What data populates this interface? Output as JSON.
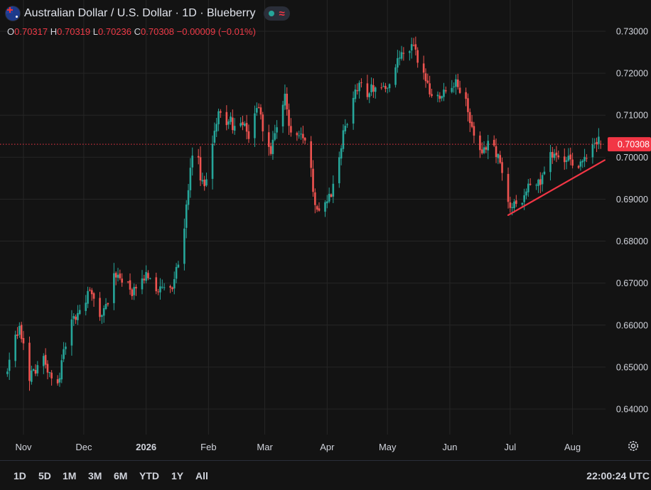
{
  "header": {
    "title": "Australian Dollar / U.S. Dollar · 1D · Blueberry",
    "ohlc": {
      "open_label": "O",
      "open": "0.70317",
      "high_label": "H",
      "high": "0.70319",
      "low_label": "L",
      "low": "0.70236",
      "close_label": "C",
      "close": "0.70308",
      "change": "−0.00009 (−0.01%)"
    },
    "icons": {
      "flag": "aud-usd-flag-icon",
      "status": "market-open-dot-icon",
      "wave": "wave-icon"
    }
  },
  "toolbar": {
    "ranges": [
      "1D",
      "5D",
      "1M",
      "3M",
      "6M",
      "YTD",
      "1Y",
      "All"
    ],
    "time": "22:00:24 UTC",
    "settings_icon": "gear-icon"
  },
  "colors": {
    "background": "#131313",
    "grid": "#262626",
    "up": "#26a69a",
    "down": "#ef5350",
    "trendline": "#f23645",
    "price_label": "#f23645",
    "text": "#d1d4dc"
  },
  "chart_data": {
    "type": "candlestick",
    "symbol": "AUD/USD",
    "interval": "1D",
    "ylim": [
      0.6345,
      0.7305
    ],
    "yticks": [
      "0.73000",
      "0.72000",
      "0.71000",
      "0.70000",
      "0.69000",
      "0.68000",
      "0.67000",
      "0.66000",
      "0.65000",
      "0.64000"
    ],
    "current_price": "0.70308",
    "xticks": [
      {
        "label": "Nov",
        "day": 0,
        "bold": false
      },
      {
        "label": "Dec",
        "day": 30,
        "bold": false
      },
      {
        "label": "2026",
        "day": 61,
        "bold": true
      },
      {
        "label": "Feb",
        "day": 92,
        "bold": false
      },
      {
        "label": "Mar",
        "day": 120,
        "bold": false
      },
      {
        "label": "Apr",
        "day": 151,
        "bold": false
      },
      {
        "label": "May",
        "day": 181,
        "bold": false
      },
      {
        "label": "Jun",
        "day": 212,
        "bold": false
      },
      {
        "label": "Jul",
        "day": 242,
        "bold": false
      },
      {
        "label": "Aug",
        "day": 273,
        "bold": false
      }
    ],
    "grid": true,
    "trendline": {
      "from": {
        "day": 241,
        "price": 0.6862
      },
      "to": {
        "day": 289,
        "price": 0.6993
      }
    },
    "close_anchors": [
      [
        -8,
        0.6485
      ],
      [
        -5,
        0.6555
      ],
      [
        -2,
        0.6588
      ],
      [
        1,
        0.6532
      ],
      [
        3,
        0.6478
      ],
      [
        6,
        0.6496
      ],
      [
        9,
        0.6535
      ],
      [
        12,
        0.6492
      ],
      [
        15,
        0.6452
      ],
      [
        17,
        0.6462
      ],
      [
        21,
        0.6555
      ],
      [
        24,
        0.6608
      ],
      [
        27,
        0.6622
      ],
      [
        30,
        0.6655
      ],
      [
        33,
        0.6678
      ],
      [
        36,
        0.6652
      ],
      [
        39,
        0.6618
      ],
      [
        42,
        0.6662
      ],
      [
        45,
        0.6712
      ],
      [
        48,
        0.6718
      ],
      [
        51,
        0.6702
      ],
      [
        54,
        0.6675
      ],
      [
        57,
        0.6685
      ],
      [
        60,
        0.6712
      ],
      [
        62,
        0.6722
      ],
      [
        65,
        0.6695
      ],
      [
        68,
        0.6682
      ],
      [
        71,
        0.6688
      ],
      [
        74,
        0.6682
      ],
      [
        76,
        0.6728
      ],
      [
        79,
        0.6808
      ],
      [
        82,
        0.6912
      ],
      [
        84,
        0.7012
      ],
      [
        86,
        0.7025
      ],
      [
        88,
        0.6948
      ],
      [
        90,
        0.6922
      ],
      [
        93,
        0.7012
      ],
      [
        95,
        0.7065
      ],
      [
        97,
        0.7112
      ],
      [
        100,
        0.7072
      ],
      [
        103,
        0.7085
      ],
      [
        106,
        0.7062
      ],
      [
        109,
        0.7075
      ],
      [
        112,
        0.7052
      ],
      [
        115,
        0.7105
      ],
      [
        117,
        0.7122
      ],
      [
        120,
        0.7042
      ],
      [
        123,
        0.7012
      ],
      [
        126,
        0.7062
      ],
      [
        128,
        0.7105
      ],
      [
        130,
        0.7145
      ],
      [
        132,
        0.7082
      ],
      [
        134,
        0.7038
      ],
      [
        137,
        0.7062
      ],
      [
        140,
        0.7045
      ],
      [
        143,
        0.6962
      ],
      [
        145,
        0.6895
      ],
      [
        148,
        0.6865
      ],
      [
        150,
        0.6892
      ],
      [
        153,
        0.6912
      ],
      [
        156,
        0.6962
      ],
      [
        159,
        0.7055
      ],
      [
        162,
        0.7105
      ],
      [
        165,
        0.7152
      ],
      [
        168,
        0.7175
      ],
      [
        171,
        0.7155
      ],
      [
        174,
        0.7168
      ],
      [
        177,
        0.7175
      ],
      [
        180,
        0.7162
      ],
      [
        183,
        0.7192
      ],
      [
        186,
        0.7225
      ],
      [
        189,
        0.7248
      ],
      [
        191,
        0.7235
      ],
      [
        193,
        0.7268
      ],
      [
        195,
        0.7245
      ],
      [
        198,
        0.7212
      ],
      [
        201,
        0.7172
      ],
      [
        204,
        0.7132
      ],
      [
        207,
        0.7152
      ],
      [
        210,
        0.7162
      ],
      [
        213,
        0.7175
      ],
      [
        216,
        0.7172
      ],
      [
        219,
        0.7148
      ],
      [
        222,
        0.7085
      ],
      [
        225,
        0.7032
      ],
      [
        228,
        0.6998
      ],
      [
        231,
        0.7042
      ],
      [
        234,
        0.7025
      ],
      [
        237,
        0.6985
      ],
      [
        240,
        0.6898
      ],
      [
        242,
        0.6882
      ],
      [
        245,
        0.6895
      ],
      [
        248,
        0.6902
      ],
      [
        251,
        0.6928
      ],
      [
        254,
        0.6932
      ],
      [
        257,
        0.6942
      ],
      [
        260,
        0.6978
      ],
      [
        262,
        0.7005
      ],
      [
        264,
        0.7012
      ],
      [
        266,
        0.6998
      ],
      [
        268,
        0.6978
      ],
      [
        271,
        0.6992
      ],
      [
        273,
        0.6975
      ],
      [
        275,
        0.6985
      ],
      [
        278,
        0.6982
      ],
      [
        281,
        0.7015
      ],
      [
        283,
        0.7025
      ],
      [
        285,
        0.7038
      ],
      [
        287,
        0.7052
      ],
      [
        289,
        0.7031
      ]
    ],
    "last_bar": {
      "open": 0.70317,
      "high": 0.70319,
      "low": 0.70236,
      "close": 0.70308
    }
  }
}
